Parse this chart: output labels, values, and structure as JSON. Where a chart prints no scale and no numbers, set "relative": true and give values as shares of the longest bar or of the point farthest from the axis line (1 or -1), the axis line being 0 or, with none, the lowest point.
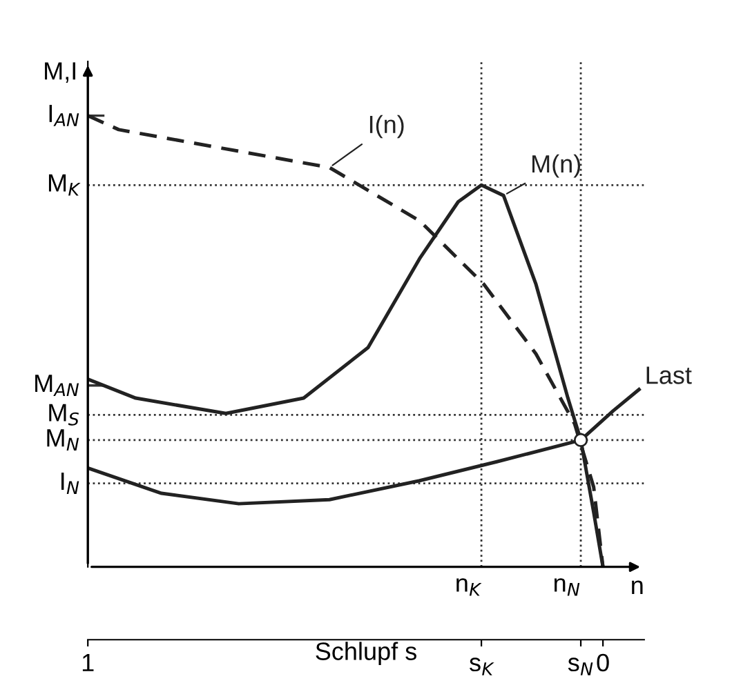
{
  "chart_data": {
    "type": "line",
    "relative": true,
    "ylabel": "M,I",
    "xlabel": "Schlupf s",
    "xlim": [
      1,
      -0.08
    ],
    "xticks": [
      1,
      {
        "value": 0.236,
        "label": "s$_{K}$"
      },
      {
        "value": 0.043,
        "label": "s$_{N}$"
      },
      0
    ],
    "annotations": [
      "n"
    ],
    "series": [
      {
        "name": "I(n)",
        "color": "#222222",
        "line_style": "dashed",
        "x": [
          1,
          0.94,
          0.531,
          0.356,
          0.231,
          0.13,
          0.055,
          0.018,
          0
        ],
        "values": [
          1.0,
          0.969,
          0.885,
          0.767,
          0.626,
          0.472,
          0.317,
          0.177,
          0
        ]
      },
      {
        "name": "M(n)",
        "color": "#222222",
        "line_style": "solid",
        "x": [
          1,
          0.907,
          0.732,
          0.581,
          0.456,
          0.356,
          0.281,
          0.236,
          0.193,
          0.13,
          0.068,
          0.043,
          0.018,
          0
        ],
        "values": [
          0.416,
          0.374,
          0.34,
          0.374,
          0.486,
          0.683,
          0.809,
          0.846,
          0.823,
          0.626,
          0.374,
          0.281,
          0.121,
          0
        ]
      },
      {
        "name": "Last",
        "color": "#222222",
        "line_style": "solid",
        "x": [
          1,
          0.857,
          0.707,
          0.531,
          0.356,
          0.206,
          0.043,
          -0.02,
          -0.07
        ],
        "values": [
          0.219,
          0.163,
          0.14,
          0.149,
          0.191,
          0.233,
          0.281,
          0.346,
          0.393
        ]
      },
      {
        "type": "scatter",
        "marker": "circle",
        "color": "#222222",
        "x": [
          0.043
        ],
        "values": [
          0.281
        ]
      }
    ],
    "ref_lines": [
      {
        "axis": "y",
        "value": 1.0,
        "label": "I$_{AN}$",
        "line_style": "solid"
      },
      {
        "axis": "y",
        "value": 0.846,
        "label": "M$_{K}$",
        "line_style": "dotted"
      },
      {
        "axis": "y",
        "value": 0.402,
        "label": "M$_{AN}$",
        "line_style": "solid"
      },
      {
        "axis": "y",
        "value": 0.337,
        "label": "M$_{S}$",
        "line_style": "dotted"
      },
      {
        "axis": "y",
        "value": 0.281,
        "label": "M$_{N}$",
        "line_style": "dotted"
      },
      {
        "axis": "y",
        "value": 0.185,
        "label": "I$_{N}$",
        "line_style": "dotted"
      },
      {
        "axis": "x",
        "value": 0.236,
        "label": "n$_{K}$",
        "line_style": "dotted"
      },
      {
        "axis": "x",
        "value": 0.043,
        "label": "n$_{N}$",
        "line_style": "dotted"
      }
    ]
  }
}
